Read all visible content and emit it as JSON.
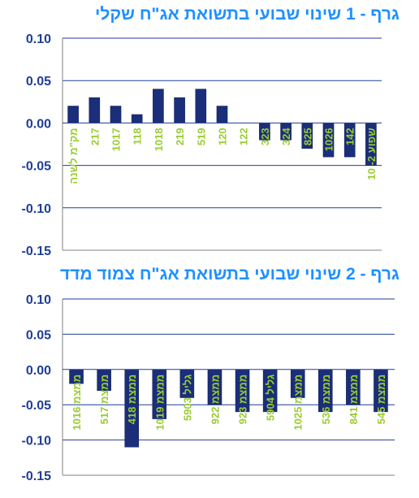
{
  "chart_data": [
    {
      "type": "bar",
      "title": "גרף - 1  שינוי שבועי בתשואת אג\"ח שקלי",
      "ylim": [
        -0.15,
        0.1
      ],
      "yticks": [
        "0.10",
        "0.05",
        "0.00",
        "-0.05",
        "-0.10",
        "-0.15"
      ],
      "grid": true,
      "categories": [
        "מק\"מ לשנה",
        "217",
        "1017",
        "118",
        "1018",
        "219",
        "519",
        "120",
        "122",
        "323",
        "324",
        "825",
        "1026",
        "142",
        "שפוע 2- 10"
      ],
      "values": [
        0.02,
        0.03,
        0.02,
        0.01,
        0.04,
        0.03,
        0.04,
        0.02,
        0.0,
        -0.02,
        -0.02,
        -0.03,
        -0.04,
        -0.04,
        -0.05
      ]
    },
    {
      "type": "bar",
      "title": "גרף - 2  שינוי שבועי בתשואת אג\"ח צמוד מדד",
      "ylim": [
        -0.15,
        0.1
      ],
      "yticks": [
        "0.10",
        "0.05",
        "0.00",
        "-0.05",
        "-0.10",
        "-0.15"
      ],
      "grid": true,
      "categories": [
        "ממצמ 1016",
        "ממצמ 517",
        "ממצמ 418",
        "ממצמ 1019",
        "גליל 5903",
        "ממצמ 922",
        "ממצמ 923",
        "גליל 5904",
        "ממצמ 1025",
        "ממצמ 536",
        "ממצמ 841",
        "ממצמ 545"
      ],
      "values": [
        -0.02,
        -0.03,
        -0.11,
        -0.07,
        -0.04,
        -0.05,
        -0.06,
        -0.06,
        -0.04,
        -0.06,
        -0.05,
        -0.06
      ]
    }
  ],
  "colors": {
    "title": "#1E90FF",
    "tick": "#1F3E95",
    "category": "#9ACD32",
    "bar": "#1A2E7A",
    "grid": "#1F3E95"
  }
}
